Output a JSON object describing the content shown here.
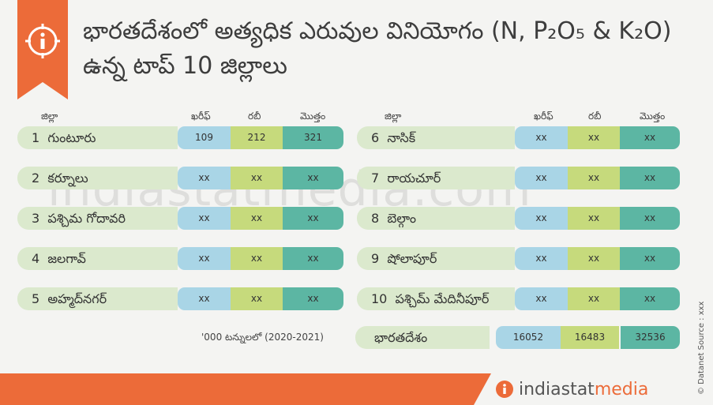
{
  "title": "భారతదేశంలో అత్యధిక ఎరువుల వినియోగం (N, P₂O₅ & K₂O) ఉన్న టాప్ 10 జిల్లాలు",
  "columns": {
    "district": "జిల్లా",
    "kharif": "ఖరీఫ్",
    "rabi": "రబీ",
    "total": "మొత్తం"
  },
  "left_rows": [
    {
      "rank": "1",
      "name": "గుంటూరు",
      "kharif": "109",
      "rabi": "212",
      "total": "321"
    },
    {
      "rank": "2",
      "name": "కర్నూలు",
      "kharif": "xx",
      "rabi": "xx",
      "total": "xx"
    },
    {
      "rank": "3",
      "name": "పశ్చిమ గోదావరి",
      "kharif": "xx",
      "rabi": "xx",
      "total": "xx"
    },
    {
      "rank": "4",
      "name": "జలగావ్",
      "kharif": "xx",
      "rabi": "xx",
      "total": "xx"
    },
    {
      "rank": "5",
      "name": "అహ్మద్‌నగర్",
      "kharif": "xx",
      "rabi": "xx",
      "total": "xx"
    }
  ],
  "right_rows": [
    {
      "rank": "6",
      "name": "నాసిక్",
      "kharif": "xx",
      "rabi": "xx",
      "total": "xx"
    },
    {
      "rank": "7",
      "name": "రాయచూర్",
      "kharif": "xx",
      "rabi": "xx",
      "total": "xx"
    },
    {
      "rank": "8",
      "name": "బెల్గాం",
      "kharif": "xx",
      "rabi": "xx",
      "total": "xx"
    },
    {
      "rank": "9",
      "name": "షోలాపూర్",
      "kharif": "xx",
      "rabi": "xx",
      "total": "xx"
    },
    {
      "rank": "10",
      "name": "పశ్చిమ్ మేదినీపూర్",
      "kharif": "xx",
      "rabi": "xx",
      "total": "xx"
    }
  ],
  "footnote": "'000 టన్నులలో (2020-2021)",
  "india": {
    "name": "భారతదేశం",
    "kharif": "16052",
    "rabi": "16483",
    "total": "32536"
  },
  "watermark": "indiastatmedia.com",
  "side_credit": "© Datanet Source : xxx",
  "footer_logo": {
    "part1": "indiastat",
    "part2": "media"
  },
  "icons": {
    "badge": "info-icon",
    "footer": "indiastat-logo-icon"
  },
  "colors": {
    "accent": "#ec6b39",
    "name_bg": "#dbe9cd",
    "kharif": "#a9d5e6",
    "rabi": "#c6da7c",
    "total": "#5cb6a3"
  }
}
